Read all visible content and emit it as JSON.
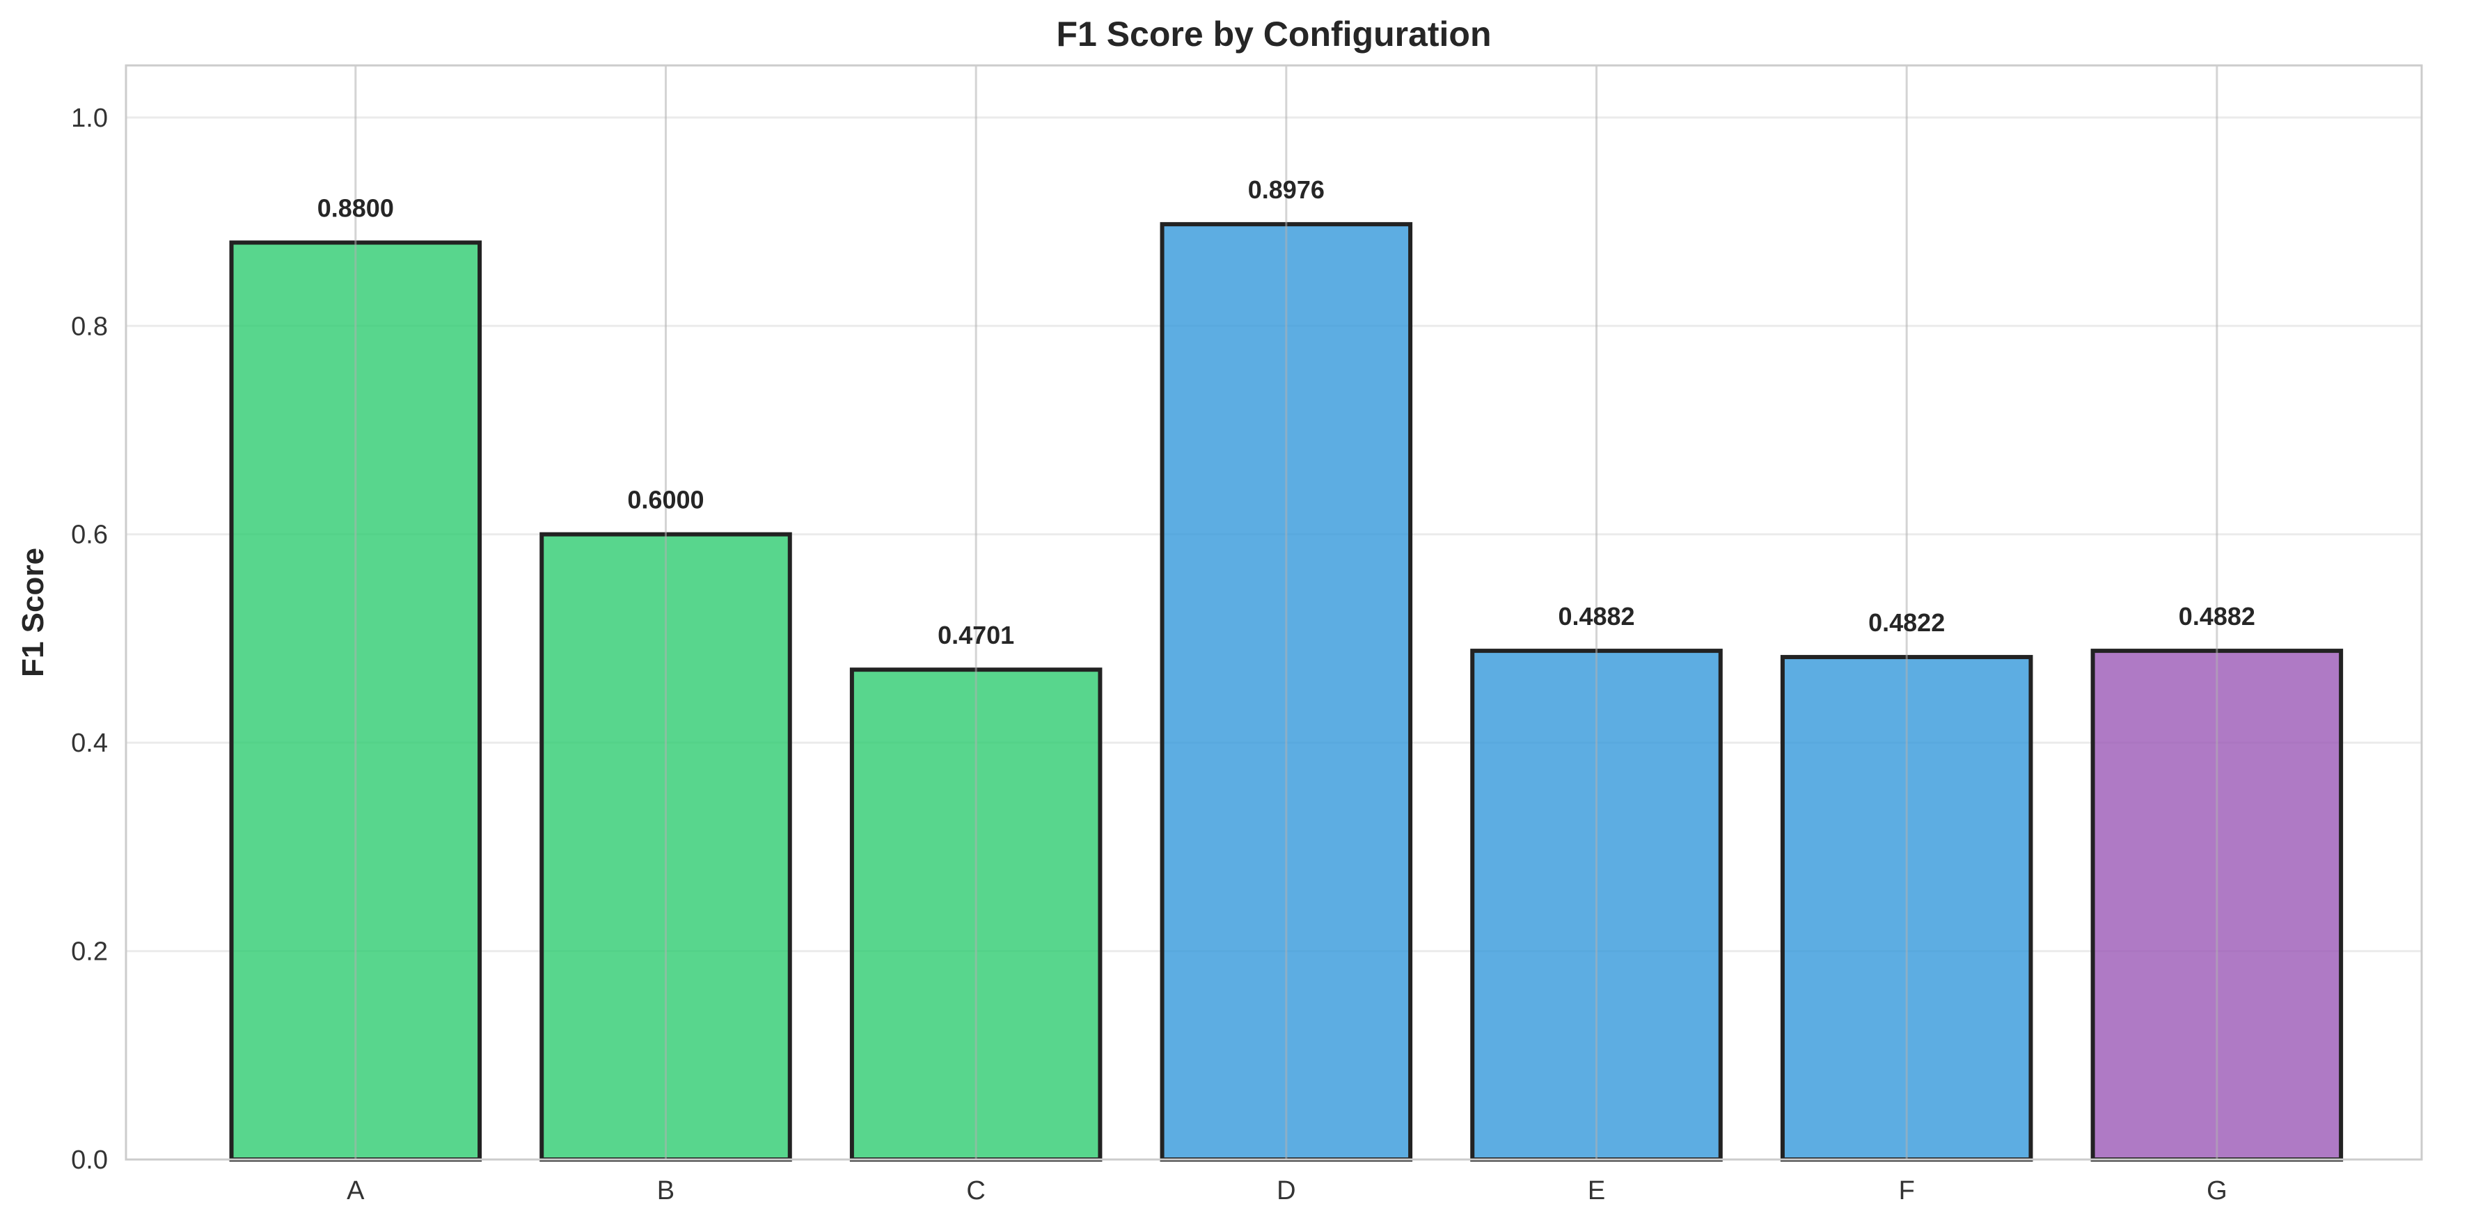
{
  "chart_data": {
    "type": "bar",
    "title": "F1 Score by Configuration",
    "xlabel": "",
    "ylabel": "F1 Score",
    "categories": [
      "A",
      "B",
      "C",
      "D",
      "E",
      "F",
      "G"
    ],
    "values": [
      0.88,
      0.6,
      0.4701,
      0.8976,
      0.4882,
      0.4822,
      0.4882
    ],
    "value_labels": [
      "0.8800",
      "0.6000",
      "0.4701",
      "0.8976",
      "0.4882",
      "0.4822",
      "0.4882"
    ],
    "bar_colors": [
      "#2ecc71",
      "#2ecc71",
      "#2ecc71",
      "#3498db",
      "#3498db",
      "#3498db",
      "#9b59b6"
    ],
    "bar_edge_color": "#222222",
    "ylim": [
      0,
      1.05
    ],
    "yticks": [
      0.0,
      0.2,
      0.4,
      0.6,
      0.8,
      1.0
    ],
    "ytick_labels": [
      "0.0",
      "0.2",
      "0.4",
      "0.6",
      "0.8",
      "1.0"
    ],
    "grid": true,
    "legend": false
  }
}
